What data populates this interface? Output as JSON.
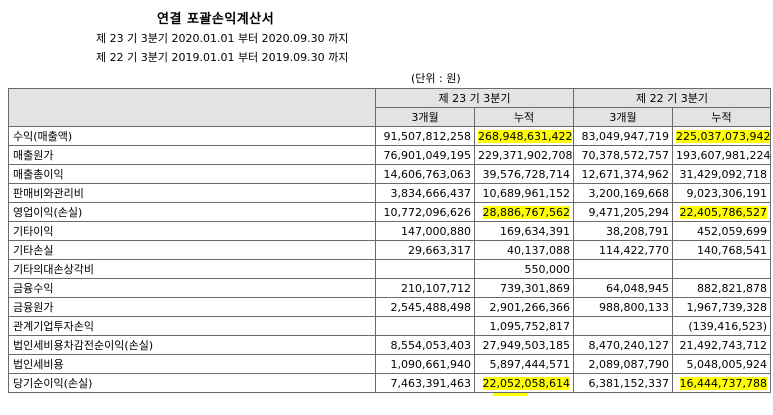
{
  "title": "연결 포괄손익계산서",
  "period_current": "제 23 기 3분기 2020.01.01 부터 2020.09.30 까지",
  "period_prior": "제 22 기 3분기 2019.01.01 부터 2019.09.30 까지",
  "unit": "(단위 : 원)",
  "header": {
    "current_period": "제 23 기 3분기",
    "prior_period": "제 22 기 3분기",
    "sub": [
      "3개월",
      "누적",
      "3개월",
      "누적"
    ]
  },
  "highlight_color": "#ffff00",
  "rows": [
    {
      "label": "수익(매출액)",
      "v": [
        "91,507,812,258",
        "268,948,631,422",
        "83,049,947,719",
        "225,037,073,942"
      ]
    },
    {
      "label": "매출원가",
      "v": [
        "76,901,049,195",
        "229,371,902,708",
        "70,378,572,757",
        "193,607,981,224"
      ]
    },
    {
      "label": "매출총이익",
      "v": [
        "14,606,763,063",
        "39,576,728,714",
        "12,671,374,962",
        "31,429,092,718"
      ]
    },
    {
      "label": "판매비와관리비",
      "v": [
        "3,834,666,437",
        "10,689,961,152",
        "3,200,169,668",
        "9,023,306,191"
      ]
    },
    {
      "label": "영업이익(손실)",
      "v": [
        "10,772,096,626",
        "28,886,767,562",
        "9,471,205,294",
        "22,405,786,527"
      ]
    },
    {
      "label": "기타이익",
      "v": [
        "147,000,880",
        "169,634,391",
        "38,208,791",
        "452,059,699"
      ]
    },
    {
      "label": "기타손실",
      "v": [
        "29,663,317",
        "40,137,088",
        "114,422,770",
        "140,768,541"
      ]
    },
    {
      "label": "기타의대손상각비",
      "v": [
        "",
        "550,000",
        "",
        ""
      ]
    },
    {
      "label": "금융수익",
      "v": [
        "210,107,712",
        "739,301,869",
        "64,048,945",
        "882,821,878"
      ]
    },
    {
      "label": "금융원가",
      "v": [
        "2,545,488,498",
        "2,901,266,366",
        "988,800,133",
        "1,967,739,328"
      ]
    },
    {
      "label": "관계기업투자손익",
      "v": [
        "",
        "1,095,752,817",
        "",
        "(139,416,523)"
      ]
    },
    {
      "label": "법인세비용차감전순이익(손실)",
      "v": [
        "8,554,053,403",
        "27,949,503,185",
        "8,470,240,127",
        "21,492,743,712"
      ]
    },
    {
      "label": "법인세비용",
      "v": [
        "1,090,661,940",
        "5,897,444,571",
        "2,089,087,790",
        "5,048,005,924"
      ]
    },
    {
      "label": "당기순이익(손실)",
      "v": [
        "7,463,391,463",
        "22,052,058,614",
        "6,381,152,337",
        "16,444,737,788"
      ]
    }
  ]
}
